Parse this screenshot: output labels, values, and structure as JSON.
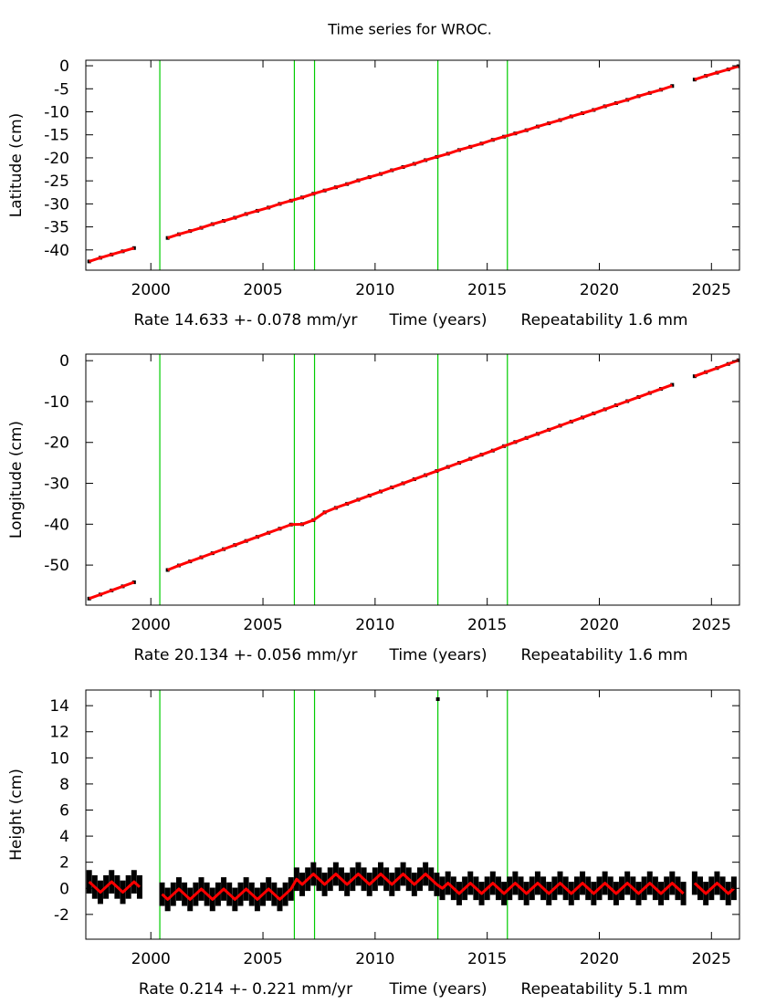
{
  "title": "Time series for WROC.",
  "chart_data": [
    {
      "type": "scatter",
      "ylabel": "Latitude (cm)",
      "xlabel": "Time (years)",
      "rate": "Rate 14.633 +- 0.078 mm/yr",
      "repeatability": "Repeatability 1.6 mm",
      "xlim": [
        1997.1,
        2026.25
      ],
      "xticks": [
        2000,
        2005,
        2010,
        2015,
        2020,
        2025
      ],
      "ylim": [
        -44.4,
        1.2
      ],
      "yticks": [
        0,
        -5,
        -10,
        -15,
        -20,
        -25,
        -30,
        -35,
        -40
      ],
      "event_lines": [
        2000.4,
        2006.4,
        2007.3,
        2012.8,
        2015.9
      ],
      "event_color": "#00cc00",
      "x": [
        1997.25,
        1997.75,
        1998.25,
        1998.75,
        1999.25,
        1999.75,
        2000.25,
        2000.75,
        2001.25,
        2001.75,
        2002.25,
        2002.75,
        2003.25,
        2003.75,
        2004.25,
        2004.75,
        2005.25,
        2005.75,
        2006.25,
        2006.75,
        2007.25,
        2007.75,
        2008.25,
        2008.75,
        2009.25,
        2009.75,
        2010.25,
        2010.75,
        2011.25,
        2011.75,
        2012.25,
        2012.75,
        2013.25,
        2013.75,
        2014.25,
        2014.75,
        2015.25,
        2015.75,
        2016.25,
        2016.75,
        2017.25,
        2017.75,
        2018.25,
        2018.75,
        2019.25,
        2019.75,
        2020.25,
        2020.75,
        2021.25,
        2021.75,
        2022.25,
        2022.75,
        2023.25,
        2023.75,
        2024.25,
        2024.75,
        2025.25,
        2025.75,
        2026.2
      ],
      "series": [
        {
          "color": "#000000",
          "style": "points",
          "values": [
            -42.5,
            -41.7,
            -41.0,
            -40.3,
            -39.6,
            null,
            null,
            -37.4,
            -36.6,
            -35.9,
            -35.2,
            -34.4,
            -33.7,
            -33.0,
            -32.2,
            -31.5,
            -30.8,
            -30.0,
            -29.3,
            -28.6,
            -27.8,
            -27.1,
            -26.4,
            -25.7,
            -24.9,
            -24.2,
            -23.5,
            -22.7,
            -22.0,
            -21.3,
            -20.5,
            -19.8,
            -19.1,
            -18.3,
            -17.6,
            -16.9,
            -16.1,
            -15.4,
            -14.7,
            -14.0,
            -13.2,
            -12.5,
            -11.8,
            -11.0,
            -10.3,
            -9.6,
            -8.8,
            -8.1,
            -7.4,
            -6.6,
            -5.9,
            -5.2,
            -4.4,
            null,
            -3.0,
            -2.2,
            -1.5,
            -0.8,
            -0.1
          ]
        },
        {
          "color": "#ff0000",
          "style": "line",
          "values": [
            -42.5,
            -41.7,
            -41.0,
            -40.3,
            -39.6,
            null,
            null,
            -37.4,
            -36.6,
            -35.9,
            -35.2,
            -34.4,
            -33.7,
            -33.0,
            -32.2,
            -31.5,
            -30.8,
            -30.0,
            -29.3,
            -28.6,
            -27.8,
            -27.1,
            -26.4,
            -25.7,
            -24.9,
            -24.2,
            -23.5,
            -22.7,
            -22.0,
            -21.3,
            -20.5,
            -19.8,
            -19.1,
            -18.3,
            -17.6,
            -16.9,
            -16.1,
            -15.4,
            -14.7,
            -14.0,
            -13.2,
            -12.5,
            -11.8,
            -11.0,
            -10.3,
            -9.6,
            -8.8,
            -8.1,
            -7.4,
            -6.6,
            -5.9,
            -5.2,
            -4.4,
            null,
            -3.0,
            -2.2,
            -1.5,
            -0.8,
            -0.1
          ]
        }
      ]
    },
    {
      "type": "scatter",
      "ylabel": "Longitude (cm)",
      "xlabel": "Time (years)",
      "rate": "Rate 20.134 +- 0.056 mm/yr",
      "repeatability": "Repeatability 1.6 mm",
      "xlim": [
        1997.1,
        2026.25
      ],
      "xticks": [
        2000,
        2005,
        2010,
        2015,
        2020,
        2025
      ],
      "ylim": [
        -59.8,
        1.6
      ],
      "yticks": [
        0,
        -10,
        -20,
        -30,
        -40,
        -50
      ],
      "event_lines": [
        2000.4,
        2006.4,
        2007.3,
        2012.8,
        2015.9
      ],
      "event_color": "#00cc00",
      "x": [
        1997.25,
        1997.75,
        1998.25,
        1998.75,
        1999.25,
        1999.75,
        2000.25,
        2000.75,
        2001.25,
        2001.75,
        2002.25,
        2002.75,
        2003.25,
        2003.75,
        2004.25,
        2004.75,
        2005.25,
        2005.75,
        2006.25,
        2006.75,
        2007.25,
        2007.75,
        2008.25,
        2008.75,
        2009.25,
        2009.75,
        2010.25,
        2010.75,
        2011.25,
        2011.75,
        2012.25,
        2012.75,
        2013.25,
        2013.75,
        2014.25,
        2014.75,
        2015.25,
        2015.75,
        2016.25,
        2016.75,
        2017.25,
        2017.75,
        2018.25,
        2018.75,
        2019.25,
        2019.75,
        2020.25,
        2020.75,
        2021.25,
        2021.75,
        2022.25,
        2022.75,
        2023.25,
        2023.75,
        2024.25,
        2024.75,
        2025.25,
        2025.75,
        2026.2
      ],
      "series": [
        {
          "color": "#000000",
          "style": "points",
          "values": [
            -58.2,
            -57.2,
            -56.2,
            -55.2,
            -54.2,
            null,
            null,
            -51.2,
            -50.1,
            -49.1,
            -48.1,
            -47.1,
            -46.1,
            -45.1,
            -44.1,
            -43.1,
            -42.1,
            -41.1,
            -40.1,
            -40.0,
            -39.0,
            -37.1,
            -36.0,
            -35.0,
            -34.0,
            -33.0,
            -32.0,
            -31.0,
            -30.0,
            -29.0,
            -28.0,
            -27.0,
            -26.0,
            -25.0,
            -24.0,
            -23.0,
            -22.0,
            -20.9,
            -19.9,
            -18.9,
            -17.9,
            -16.9,
            -15.9,
            -14.9,
            -13.9,
            -12.9,
            -11.9,
            -10.9,
            -9.9,
            -8.9,
            -7.9,
            -6.9,
            -5.9,
            null,
            -3.8,
            -2.8,
            -1.8,
            -0.8,
            0.1
          ]
        },
        {
          "color": "#ff0000",
          "style": "line",
          "values": [
            -58.2,
            -57.2,
            -56.2,
            -55.2,
            -54.2,
            null,
            null,
            -51.2,
            -50.1,
            -49.1,
            -48.1,
            -47.1,
            -46.1,
            -45.1,
            -44.1,
            -43.1,
            -42.1,
            -41.1,
            -40.1,
            -40.0,
            -39.0,
            -37.1,
            -36.0,
            -35.0,
            -34.0,
            -33.0,
            -32.0,
            -31.0,
            -30.0,
            -29.0,
            -28.0,
            -27.0,
            -26.0,
            -25.0,
            -24.0,
            -23.0,
            -22.0,
            -20.9,
            -19.9,
            -18.9,
            -17.9,
            -16.9,
            -15.9,
            -14.9,
            -13.9,
            -12.9,
            -11.9,
            -10.9,
            -9.9,
            -8.9,
            -7.9,
            -6.9,
            -5.9,
            null,
            -3.8,
            -2.8,
            -1.8,
            -0.8,
            0.1
          ]
        }
      ]
    },
    {
      "type": "scatter",
      "ylabel": "Height (cm)",
      "xlabel": "Time (years)",
      "rate": "Rate 0.214 +- 0.221 mm/yr",
      "repeatability": "Repeatability 5.1 mm",
      "xlim": [
        1997.1,
        2026.25
      ],
      "xticks": [
        2000,
        2005,
        2010,
        2015,
        2020,
        2025
      ],
      "ylim": [
        -3.9,
        15.2
      ],
      "yticks": [
        -2,
        0,
        2,
        4,
        6,
        8,
        10,
        12,
        14
      ],
      "event_lines": [
        2000.4,
        2006.4,
        2007.3,
        2012.8,
        2015.9
      ],
      "event_color": "#00cc00",
      "x": [
        1997.25,
        1997.5,
        1997.75,
        1998,
        1998.25,
        1998.5,
        1998.75,
        1999,
        1999.25,
        1999.5,
        1999.75,
        2000,
        2000.25,
        2000.5,
        2000.75,
        2001,
        2001.25,
        2001.5,
        2001.75,
        2002,
        2002.25,
        2002.5,
        2002.75,
        2003,
        2003.25,
        2003.5,
        2003.75,
        2004,
        2004.25,
        2004.5,
        2004.75,
        2005,
        2005.25,
        2005.5,
        2005.75,
        2006,
        2006.25,
        2006.5,
        2006.75,
        2007,
        2007.25,
        2007.5,
        2007.75,
        2008,
        2008.25,
        2008.5,
        2008.75,
        2009,
        2009.25,
        2009.5,
        2009.75,
        2010,
        2010.25,
        2010.5,
        2010.75,
        2011,
        2011.25,
        2011.5,
        2011.75,
        2012,
        2012.25,
        2012.5,
        2012.75,
        2013,
        2013.25,
        2013.5,
        2013.75,
        2014,
        2014.25,
        2014.5,
        2014.75,
        2015,
        2015.25,
        2015.5,
        2015.75,
        2016,
        2016.25,
        2016.5,
        2016.75,
        2017,
        2017.25,
        2017.5,
        2017.75,
        2018,
        2018.25,
        2018.5,
        2018.75,
        2019,
        2019.25,
        2019.5,
        2019.75,
        2020,
        2020.25,
        2020.5,
        2020.75,
        2021,
        2021.25,
        2021.5,
        2021.75,
        2022,
        2022.25,
        2022.5,
        2022.75,
        2023,
        2023.25,
        2023.5,
        2023.75,
        2024,
        2024.25,
        2024.5,
        2024.75,
        2025,
        2025.25,
        2025.5,
        2025.75,
        2026
      ],
      "series": [
        {
          "color": "#000000",
          "style": "errorbars",
          "values": [
            0.5,
            0.1,
            -0.3,
            0.1,
            0.5,
            0.1,
            -0.3,
            0.1,
            0.5,
            0.1,
            null,
            null,
            null,
            -0.45,
            -0.85,
            -0.45,
            -0.05,
            -0.45,
            -0.85,
            -0.45,
            -0.05,
            -0.45,
            -0.85,
            -0.45,
            -0.05,
            -0.45,
            -0.85,
            -0.45,
            -0.05,
            -0.45,
            -0.85,
            -0.45,
            -0.05,
            -0.45,
            -0.85,
            -0.45,
            -0.05,
            0.7,
            0.3,
            0.7,
            1.1,
            0.7,
            0.3,
            0.7,
            1.1,
            0.7,
            0.3,
            0.7,
            1.1,
            0.7,
            0.3,
            0.7,
            1.1,
            0.7,
            0.3,
            0.7,
            1.1,
            0.7,
            0.3,
            0.7,
            1.1,
            0.7,
            0.3,
            0,
            0.4,
            0,
            -0.4,
            0,
            0.4,
            0,
            -0.4,
            0,
            0.4,
            0,
            -0.4,
            0,
            0.4,
            0,
            -0.4,
            0,
            0.4,
            0,
            -0.4,
            0,
            0.4,
            0,
            -0.4,
            0,
            0.4,
            0,
            -0.4,
            0,
            0.4,
            0,
            -0.4,
            0,
            0.4,
            0,
            -0.4,
            0,
            0.4,
            0,
            -0.4,
            0,
            0.4,
            0,
            -0.4,
            null,
            0.4,
            0,
            -0.4,
            0,
            0.4,
            0,
            -0.4,
            0
          ],
          "errors": [
            0.9,
            0.9,
            0.9,
            0.9,
            0.9,
            0.9,
            0.9,
            0.9,
            0.9,
            0.9,
            null,
            null,
            null,
            0.9,
            0.9,
            0.9,
            0.9,
            0.9,
            0.9,
            0.9,
            0.9,
            0.9,
            0.9,
            0.9,
            0.9,
            0.9,
            0.9,
            0.9,
            0.9,
            0.9,
            0.9,
            0.9,
            0.9,
            0.9,
            0.9,
            0.9,
            0.9,
            0.9,
            0.9,
            0.9,
            0.9,
            0.9,
            0.9,
            0.9,
            0.9,
            0.9,
            0.9,
            0.9,
            0.9,
            0.9,
            0.9,
            0.9,
            0.9,
            0.9,
            0.9,
            0.9,
            0.9,
            0.9,
            0.9,
            0.9,
            0.9,
            0.9,
            0.9,
            0.9,
            0.9,
            0.9,
            0.9,
            0.9,
            0.9,
            0.9,
            0.9,
            0.9,
            0.9,
            0.9,
            0.9,
            0.9,
            0.9,
            0.9,
            0.9,
            0.9,
            0.9,
            0.9,
            0.9,
            0.9,
            0.9,
            0.9,
            0.9,
            0.9,
            0.9,
            0.9,
            0.9,
            0.9,
            0.9,
            0.9,
            0.9,
            0.9,
            0.9,
            0.9,
            0.9,
            0.9,
            0.9,
            0.9,
            0.9,
            0.9,
            0.9,
            0.9,
            0.9,
            null,
            0.9,
            0.9,
            0.9,
            0.9,
            0.9,
            0.9,
            0.9,
            0.9
          ]
        },
        {
          "color": "#000000",
          "style": "points",
          "x": [
            2012.8
          ],
          "values": [
            14.5
          ]
        },
        {
          "color": "#ff0000",
          "style": "line",
          "values": [
            0.5,
            0.1,
            -0.3,
            0.1,
            0.5,
            0.1,
            -0.3,
            0.1,
            0.5,
            0.1,
            null,
            null,
            null,
            -0.45,
            -0.85,
            -0.45,
            -0.05,
            -0.45,
            -0.85,
            -0.45,
            -0.05,
            -0.45,
            -0.85,
            -0.45,
            -0.05,
            -0.45,
            -0.85,
            -0.45,
            -0.05,
            -0.45,
            -0.85,
            -0.45,
            -0.05,
            -0.45,
            -0.85,
            -0.45,
            -0.05,
            0.7,
            0.3,
            0.7,
            1.1,
            0.7,
            0.3,
            0.7,
            1.1,
            0.7,
            0.3,
            0.7,
            1.1,
            0.7,
            0.3,
            0.7,
            1.1,
            0.7,
            0.3,
            0.7,
            1.1,
            0.7,
            0.3,
            0.7,
            1.1,
            0.7,
            0.3,
            0,
            0.4,
            0,
            -0.4,
            0,
            0.4,
            0,
            -0.4,
            0,
            0.4,
            0,
            -0.4,
            0,
            0.4,
            0,
            -0.4,
            0,
            0.4,
            0,
            -0.4,
            0,
            0.4,
            0,
            -0.4,
            0,
            0.4,
            0,
            -0.4,
            0,
            0.4,
            0,
            -0.4,
            0,
            0.4,
            0,
            -0.4,
            0,
            0.4,
            0,
            -0.4,
            0,
            0.4,
            0,
            -0.4,
            null,
            0.4,
            0,
            -0.4,
            0,
            0.4,
            0,
            -0.4,
            0
          ]
        }
      ]
    }
  ]
}
